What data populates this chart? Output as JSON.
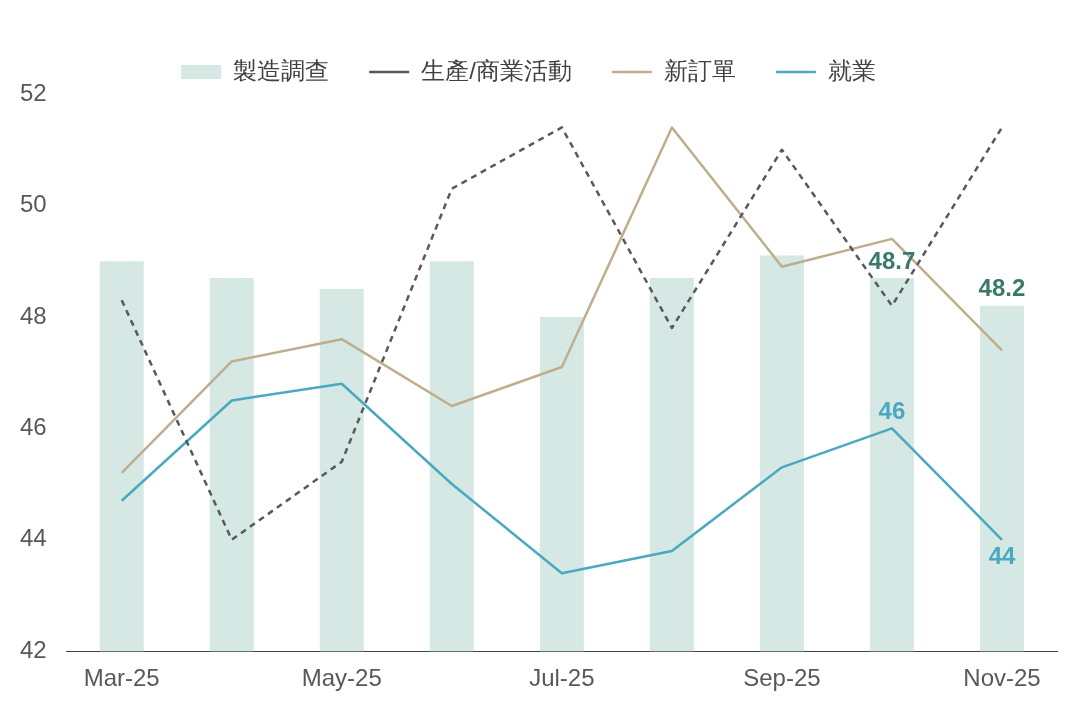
{
  "chart_data": {
    "type": "line",
    "categories": [
      "Mar-25",
      null,
      "May-25",
      null,
      "Jul-25",
      null,
      "Sep-25",
      null,
      "Nov-25"
    ],
    "series": [
      {
        "name": "製造調查",
        "type": "bar",
        "color": "#d6e8e4",
        "values": [
          49.0,
          48.7,
          48.5,
          49.0,
          48.0,
          48.7,
          49.1,
          48.7,
          48.2
        ],
        "value_labels": [
          null,
          null,
          null,
          null,
          null,
          null,
          null,
          "48.7",
          "48.2"
        ]
      },
      {
        "name": "生產/商業活動",
        "color": "#595959",
        "line_style": "dashed",
        "values": [
          48.3,
          44.0,
          45.4,
          50.3,
          51.4,
          47.8,
          51.0,
          48.2,
          51.4
        ]
      },
      {
        "name": "新訂單",
        "color": "#bfae8e",
        "values": [
          45.2,
          47.2,
          47.6,
          46.4,
          47.1,
          51.4,
          48.9,
          49.4,
          47.4
        ]
      },
      {
        "name": "就業",
        "color": "#4aa8c0",
        "values": [
          44.7,
          46.5,
          46.8,
          45.0,
          43.4,
          43.8,
          45.3,
          46,
          44
        ],
        "value_labels": [
          null,
          null,
          null,
          null,
          null,
          null,
          null,
          "46",
          "44"
        ]
      }
    ],
    "ylim": [
      42,
      52
    ],
    "yticks": [
      42,
      44,
      46,
      48,
      50,
      52
    ],
    "grid": false,
    "legend": "top",
    "marker": "none"
  }
}
